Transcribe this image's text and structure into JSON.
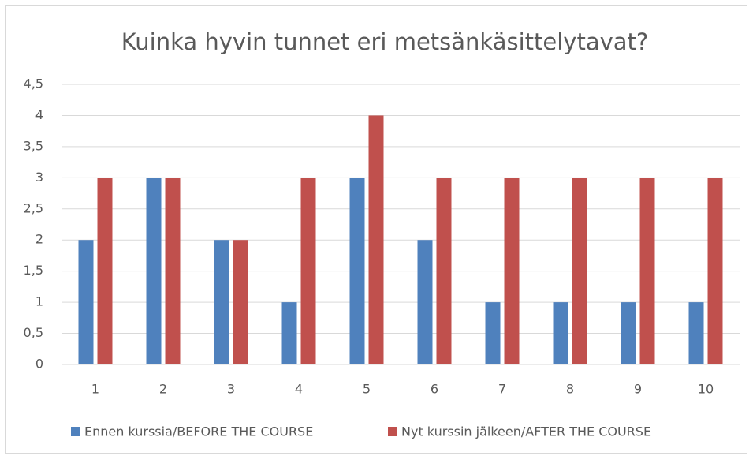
{
  "chart_data": {
    "type": "bar",
    "title": "Kuinka hyvin tunnet eri metsänkäsittelytavat?",
    "categories": [
      "1",
      "2",
      "3",
      "4",
      "5",
      "6",
      "7",
      "8",
      "9",
      "10"
    ],
    "series": [
      {
        "name": "Ennen kurssia/BEFORE THE COURSE",
        "color": "#4f81bd",
        "values": [
          2,
          3,
          2,
          1,
          3,
          2,
          1,
          1,
          1,
          1
        ]
      },
      {
        "name": "Nyt kurssin jälkeen/AFTER THE COURSE",
        "color": "#c0504d",
        "values": [
          3,
          3,
          2,
          3,
          4,
          3,
          3,
          3,
          3,
          3
        ]
      }
    ],
    "ylim": [
      0,
      4.5
    ],
    "yticks": [
      0,
      {
        "value": 0.5,
        "label": "0,5"
      },
      1,
      {
        "value": 1.5,
        "label": "1,5"
      },
      2,
      {
        "value": 2.5,
        "label": "2,5"
      },
      3,
      {
        "value": 3.5,
        "label": "3,5"
      },
      4,
      {
        "value": 4.5,
        "label": "4,5"
      }
    ],
    "grid": true,
    "legend": "bottom"
  }
}
